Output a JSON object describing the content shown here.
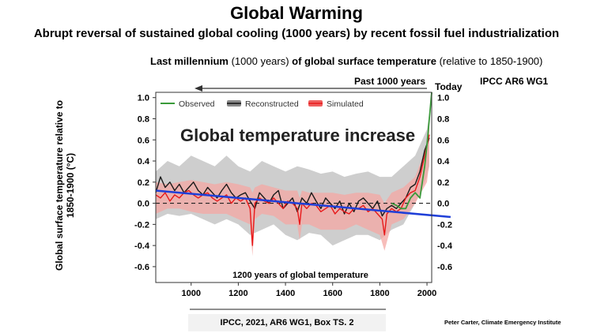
{
  "title": "Global Warming",
  "subtitle": "Abrupt reversal of sustained global cooling (1000 years) by recent fossil fuel industrialization",
  "caption": {
    "part1": "Last millennium",
    "part2": " (1000 years) ",
    "part3": "of global surface temperature",
    "part4": " (relative to 1850-1900)"
  },
  "past_label": "Past 1000 years",
  "today_label": "Today",
  "ipcc_tag": "IPCC AR6 WG1",
  "source_box": "IPCC, 2021, AR6 WG1, Box TS. 2",
  "credit": "Peter Carter, Climate Emergency Institute",
  "colors": {
    "observed": "#3a9a3a",
    "reconstructed": "#1a1a1a",
    "reconstructed_band": "#bdbdbd",
    "simulated": "#e8191a",
    "simulated_band": "#f4a7a3",
    "trend": "#1f3fd8"
  },
  "chart_data": {
    "type": "line",
    "ylabel": "Global surface temperature relative to 1850-1900 (°C)",
    "xlim": [
      850,
      2020
    ],
    "ylim": [
      -0.75,
      1.05
    ],
    "xticks": [
      "1000",
      "1200",
      "1400",
      "1600",
      "1800",
      "2000"
    ],
    "yticks_left": [
      "1.0",
      "0.8",
      "0.6",
      "0.4",
      "0.2",
      "0.0",
      "-0.2",
      "-0.4",
      "-0.6"
    ],
    "yticks_right": [
      "1.0",
      "0.8",
      "0.6",
      "0.4",
      "0.2",
      "0.0",
      "-0.2",
      "-0.4",
      "-0.6"
    ],
    "annotation_main": "Global temperature increase",
    "annotation_bottom": "1200 years of global temperature",
    "legend": [
      "Observed",
      "Reconstructed",
      "Simulated"
    ],
    "grid": false,
    "series": [
      {
        "name": "Reconstructed",
        "x": [
          850,
          870,
          890,
          910,
          930,
          950,
          970,
          990,
          1010,
          1030,
          1050,
          1070,
          1090,
          1110,
          1130,
          1150,
          1170,
          1190,
          1210,
          1230,
          1250,
          1270,
          1290,
          1310,
          1330,
          1350,
          1370,
          1390,
          1410,
          1430,
          1450,
          1470,
          1490,
          1510,
          1530,
          1550,
          1570,
          1590,
          1610,
          1630,
          1650,
          1670,
          1690,
          1710,
          1730,
          1750,
          1770,
          1790,
          1810,
          1830,
          1850,
          1870,
          1890,
          1910,
          1930,
          1950,
          1970,
          1990,
          2010
        ],
        "values": [
          0.1,
          0.25,
          0.15,
          0.2,
          0.12,
          0.18,
          0.1,
          0.15,
          0.2,
          0.12,
          0.08,
          0.15,
          0.1,
          0.05,
          0.12,
          0.18,
          0.1,
          0.05,
          0.08,
          0.1,
          0.02,
          -0.05,
          0.1,
          0.05,
          0.0,
          0.08,
          0.12,
          -0.05,
          0.0,
          0.05,
          -0.08,
          0.05,
          0.0,
          0.1,
          0.02,
          -0.05,
          0.05,
          0.0,
          -0.05,
          0.02,
          -0.1,
          0.0,
          -0.08,
          0.02,
          0.05,
          0.0,
          -0.05,
          0.02,
          -0.12,
          -0.05,
          -0.02,
          -0.05,
          0.0,
          0.05,
          0.15,
          0.18,
          0.3,
          0.5,
          0.62
        ]
      },
      {
        "name": "Simulated",
        "x": [
          850,
          870,
          890,
          910,
          930,
          950,
          970,
          990,
          1010,
          1030,
          1050,
          1070,
          1090,
          1110,
          1130,
          1150,
          1170,
          1190,
          1210,
          1230,
          1250,
          1260,
          1270,
          1290,
          1310,
          1330,
          1350,
          1370,
          1390,
          1410,
          1430,
          1450,
          1460,
          1470,
          1490,
          1510,
          1530,
          1550,
          1570,
          1590,
          1610,
          1630,
          1650,
          1670,
          1690,
          1710,
          1730,
          1750,
          1770,
          1790,
          1810,
          1820,
          1830,
          1850,
          1870,
          1890,
          1910,
          1930,
          1950,
          1970,
          1990,
          2010
        ],
        "values": [
          0.08,
          0.05,
          0.1,
          0.02,
          0.08,
          0.05,
          0.1,
          0.12,
          0.08,
          0.05,
          0.08,
          0.1,
          0.05,
          0.02,
          0.05,
          0.08,
          0.0,
          0.05,
          0.02,
          0.05,
          -0.05,
          -0.4,
          0.0,
          0.05,
          0.02,
          0.0,
          0.05,
          0.0,
          -0.05,
          0.02,
          0.0,
          -0.05,
          -0.2,
          0.0,
          -0.05,
          0.0,
          -0.02,
          -0.08,
          -0.05,
          -0.02,
          -0.1,
          -0.05,
          -0.08,
          -0.1,
          -0.05,
          -0.05,
          -0.02,
          -0.08,
          -0.05,
          -0.1,
          -0.15,
          -0.3,
          -0.1,
          -0.05,
          -0.08,
          -0.05,
          0.05,
          0.1,
          0.12,
          0.25,
          0.45,
          0.65
        ]
      },
      {
        "name": "Observed",
        "x": [
          1850,
          1870,
          1890,
          1910,
          1930,
          1950,
          1970,
          1990,
          2000,
          2010,
          2020
        ],
        "values": [
          0.0,
          -0.02,
          -0.05,
          -0.05,
          0.05,
          0.1,
          0.05,
          0.35,
          0.55,
          0.8,
          1.05
        ]
      },
      {
        "name": "Trend",
        "x": [
          850,
          2100
        ],
        "values": [
          0.12,
          -0.13
        ]
      }
    ],
    "bands": [
      {
        "name": "Reconstructed range",
        "x": [
          850,
          900,
          950,
          1000,
          1050,
          1100,
          1150,
          1200,
          1250,
          1300,
          1350,
          1400,
          1450,
          1500,
          1550,
          1600,
          1650,
          1700,
          1750,
          1800,
          1850,
          1900,
          1950,
          2000,
          2010
        ],
        "lower": [
          -0.15,
          -0.1,
          -0.12,
          -0.1,
          -0.15,
          -0.2,
          -0.15,
          -0.2,
          -0.3,
          -0.25,
          -0.2,
          -0.3,
          -0.35,
          -0.28,
          -0.3,
          -0.4,
          -0.35,
          -0.3,
          -0.3,
          -0.35,
          -0.25,
          -0.2,
          0.0,
          0.25,
          0.35
        ],
        "upper": [
          0.3,
          0.4,
          0.35,
          0.45,
          0.4,
          0.35,
          0.45,
          0.35,
          0.3,
          0.4,
          0.35,
          0.3,
          0.35,
          0.32,
          0.28,
          0.3,
          0.25,
          0.28,
          0.3,
          0.25,
          0.25,
          0.35,
          0.45,
          0.7,
          0.85
        ]
      },
      {
        "name": "Simulated range",
        "x": [
          850,
          900,
          950,
          1000,
          1050,
          1100,
          1150,
          1200,
          1250,
          1260,
          1270,
          1300,
          1350,
          1400,
          1450,
          1460,
          1470,
          1500,
          1550,
          1600,
          1650,
          1700,
          1750,
          1800,
          1820,
          1850,
          1900,
          1950,
          2000,
          2010
        ],
        "lower": [
          -0.1,
          -0.05,
          -0.05,
          -0.08,
          -0.1,
          -0.1,
          -0.1,
          -0.15,
          -0.2,
          -0.5,
          -0.15,
          -0.1,
          -0.12,
          -0.2,
          -0.2,
          -0.35,
          -0.2,
          -0.2,
          -0.25,
          -0.25,
          -0.25,
          -0.2,
          -0.25,
          -0.3,
          -0.45,
          -0.2,
          -0.15,
          0.0,
          0.2,
          0.4
        ],
        "upper": [
          0.2,
          0.18,
          0.2,
          0.22,
          0.2,
          0.18,
          0.2,
          0.18,
          0.15,
          0.1,
          0.15,
          0.18,
          0.15,
          0.12,
          0.12,
          0.05,
          0.12,
          0.1,
          0.1,
          0.1,
          0.08,
          0.1,
          0.1,
          0.08,
          0.0,
          0.1,
          0.15,
          0.25,
          0.55,
          0.8
        ]
      }
    ]
  }
}
